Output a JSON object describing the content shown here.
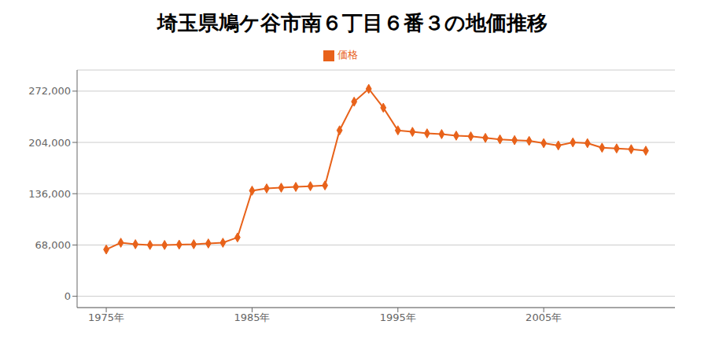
{
  "chart_data": {
    "type": "line",
    "title": "埼玉県鳩ケ谷市南６丁目６番３の地価推移",
    "x": [
      1975,
      1976,
      1977,
      1978,
      1979,
      1980,
      1981,
      1982,
      1983,
      1984,
      1985,
      1986,
      1987,
      1988,
      1989,
      1990,
      1991,
      1992,
      1993,
      1994,
      1995,
      1996,
      1997,
      1998,
      1999,
      2000,
      2001,
      2002,
      2003,
      2004,
      2005,
      2006,
      2007,
      2008,
      2009,
      2010,
      2011,
      2012
    ],
    "series": [
      {
        "name": "価格",
        "color": "#e8621a",
        "marker": "diamond",
        "values": [
          62000,
          71000,
          69000,
          68000,
          68000,
          68500,
          69000,
          70000,
          71000,
          78000,
          140000,
          143000,
          144000,
          145000,
          146000,
          147000,
          220000,
          258000,
          275000,
          250000,
          220000,
          218000,
          216000,
          215000,
          213000,
          212000,
          210000,
          208000,
          207000,
          206000,
          203000,
          200000,
          204000,
          203000,
          197000,
          196000,
          195000,
          193000
        ]
      }
    ],
    "xlim": [
      1973,
      2014
    ],
    "xticks": [
      {
        "value": 1975,
        "label": "1975年"
      },
      {
        "value": 1985,
        "label": "1985年"
      },
      {
        "value": 1995,
        "label": "1995年"
      },
      {
        "value": 2005,
        "label": "2005年"
      }
    ],
    "ylim": [
      -15000,
      300000
    ],
    "yticks": [
      0,
      {
        "value": 68000,
        "label": "68,000"
      },
      {
        "value": 136000,
        "label": "136,000"
      },
      {
        "value": 204000,
        "label": "204,000"
      },
      {
        "value": 272000,
        "label": "272,000"
      }
    ],
    "grid": "y",
    "legend": "top"
  }
}
